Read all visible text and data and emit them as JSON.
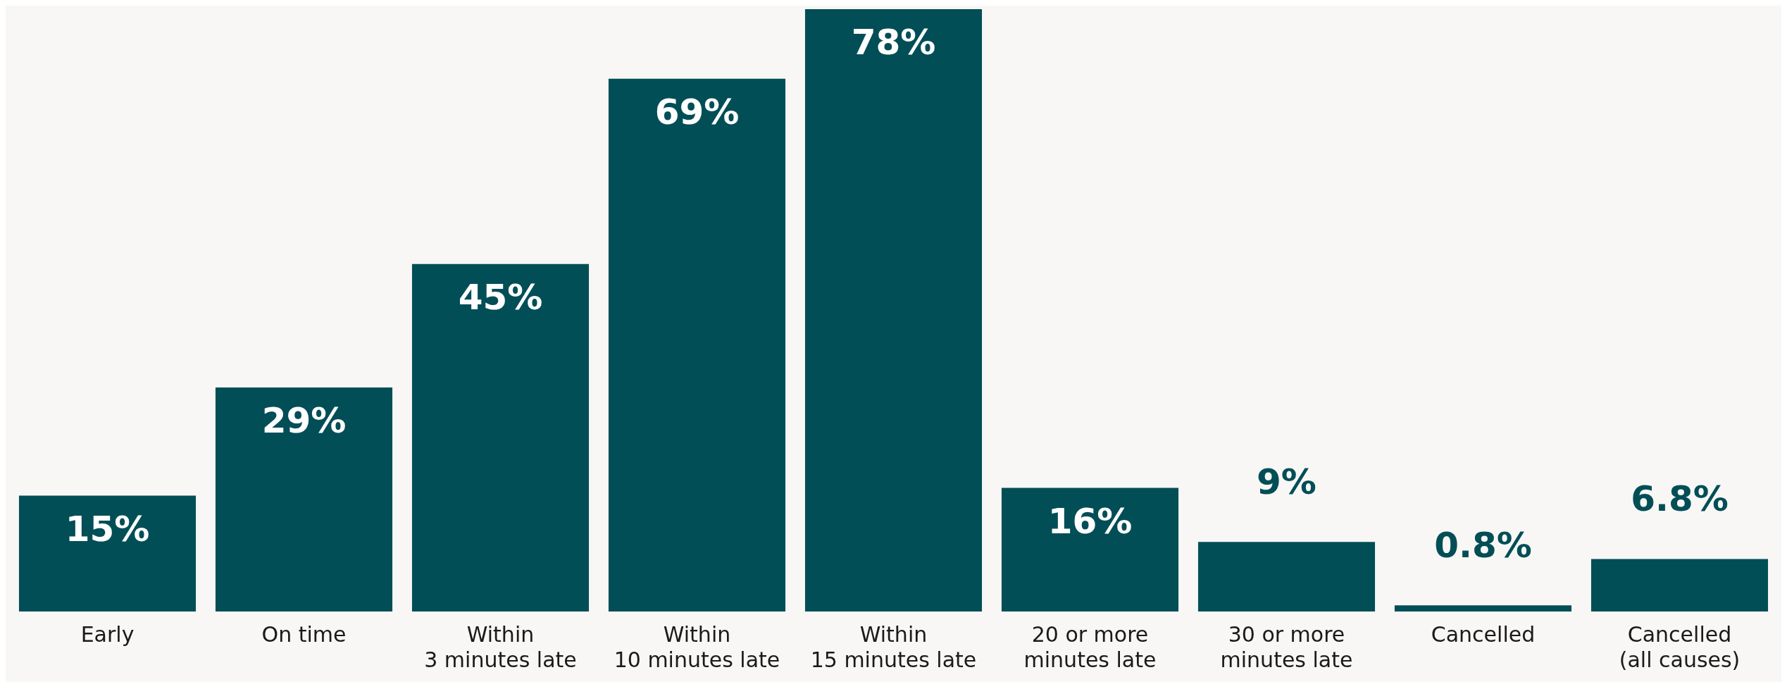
{
  "chart_data": {
    "type": "bar",
    "categories": [
      "Early",
      "On time",
      "Within\n3 minutes late",
      "Within\n10 minutes late",
      "Within\n15 minutes late",
      "20 or more\nminutes late",
      "30 or more\nminutes late",
      "Cancelled",
      "Cancelled\n(all causes)"
    ],
    "values": [
      15,
      29,
      45,
      69,
      78,
      16,
      9,
      0.8,
      6.8
    ],
    "value_labels": [
      "15%",
      "29%",
      "45%",
      "69%",
      "78%",
      "16%",
      "9%",
      "0.8%",
      "6.8%"
    ],
    "color": "#024e57"
  }
}
